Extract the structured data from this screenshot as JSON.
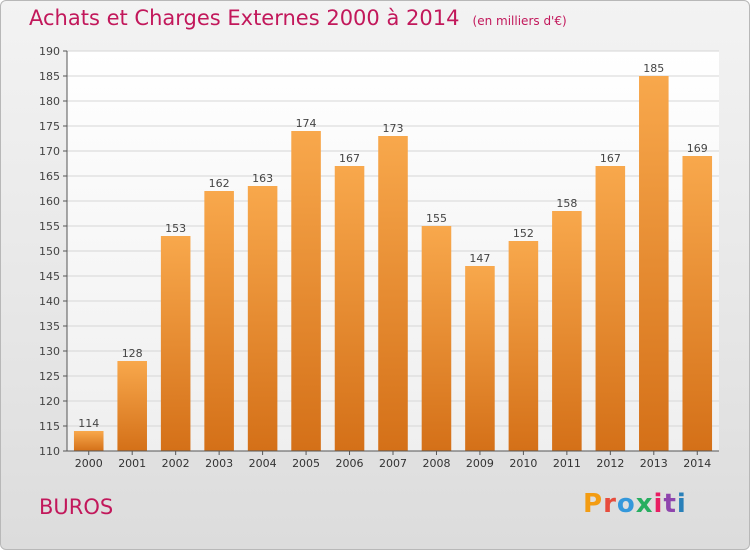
{
  "header": {
    "title": "Achats et Charges Externes 2000 à 2014",
    "unit_note": "(en milliers d'€)"
  },
  "footer": {
    "commune": "BUROS",
    "logo_text": "Proxiti",
    "logo_colors": [
      "#f39c12",
      "#e74c3c",
      "#3498db",
      "#27ae60",
      "#e91e63",
      "#8e44ad",
      "#2980b9"
    ]
  },
  "chart_data": {
    "type": "bar",
    "categories": [
      "2000",
      "2001",
      "2002",
      "2003",
      "2004",
      "2005",
      "2006",
      "2007",
      "2008",
      "2009",
      "2010",
      "2011",
      "2012",
      "2013",
      "2014"
    ],
    "values": [
      114,
      128,
      153,
      162,
      163,
      174,
      167,
      173,
      155,
      147,
      152,
      158,
      167,
      185,
      169
    ],
    "ylim": [
      110,
      190
    ],
    "yticks": [
      110,
      115,
      120,
      125,
      130,
      135,
      140,
      145,
      150,
      155,
      160,
      165,
      170,
      175,
      180,
      185,
      190
    ],
    "grid": true,
    "data_labels": true,
    "bar_color": "#f0a040",
    "bar_color_dark": "#d7761e"
  }
}
